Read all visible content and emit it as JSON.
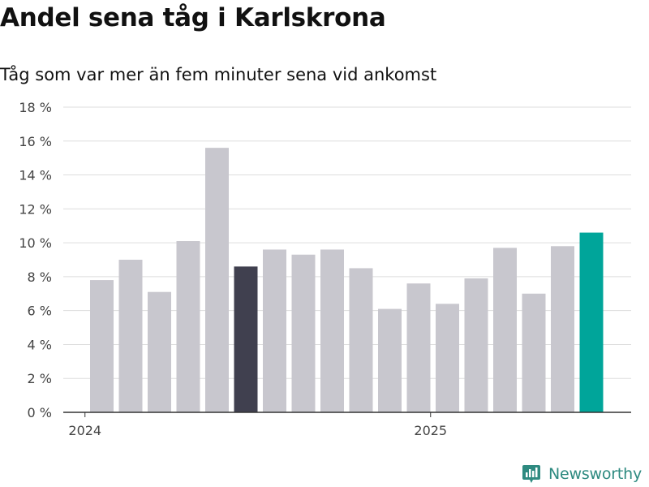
{
  "title": "Andel sena tåg i Karlskrona",
  "subtitle": "Tåg som var mer än fem minuter sena vid ankomst",
  "brand": {
    "name": "Newsworthy",
    "icon": "newsworthy-logo-icon"
  },
  "colors": {
    "bar_default": "#c8c7ce",
    "bar_highlight_dark": "#40404f",
    "bar_highlight_latest": "#00a59a",
    "gridline": "#dddddd",
    "axis": "#333333",
    "brand": "#2e8a80"
  },
  "chart_data": {
    "type": "bar",
    "x": [
      "2024-01",
      "2024-02",
      "2024-03",
      "2024-04",
      "2024-05",
      "2024-06",
      "2024-07",
      "2024-08",
      "2024-09",
      "2024-10",
      "2024-11",
      "2024-12",
      "2025-01",
      "2025-02",
      "2025-03",
      "2025-04",
      "2025-05",
      "2025-06"
    ],
    "values": [
      7.8,
      9.0,
      7.1,
      10.1,
      15.6,
      8.6,
      9.6,
      9.3,
      9.6,
      8.5,
      6.1,
      7.6,
      6.4,
      7.9,
      9.7,
      7.0,
      9.8,
      10.6
    ],
    "highlight": {
      "2024-06": "bar_highlight_dark",
      "2025-06": "bar_highlight_latest"
    },
    "y_ticks": [
      0,
      2,
      4,
      6,
      8,
      10,
      12,
      14,
      16,
      18
    ],
    "y_tick_labels": [
      "0 %",
      "2 %",
      "4 %",
      "6 %",
      "8 %",
      "10 %",
      "12 %",
      "14 %",
      "16 %",
      "18 %"
    ],
    "ylim": [
      0,
      18
    ],
    "x_ticks": [
      {
        "label": "2024",
        "at": "2024-01"
      },
      {
        "label": "2025",
        "at": "2025-01"
      }
    ],
    "grid": true,
    "xlabel": "",
    "ylabel": ""
  }
}
